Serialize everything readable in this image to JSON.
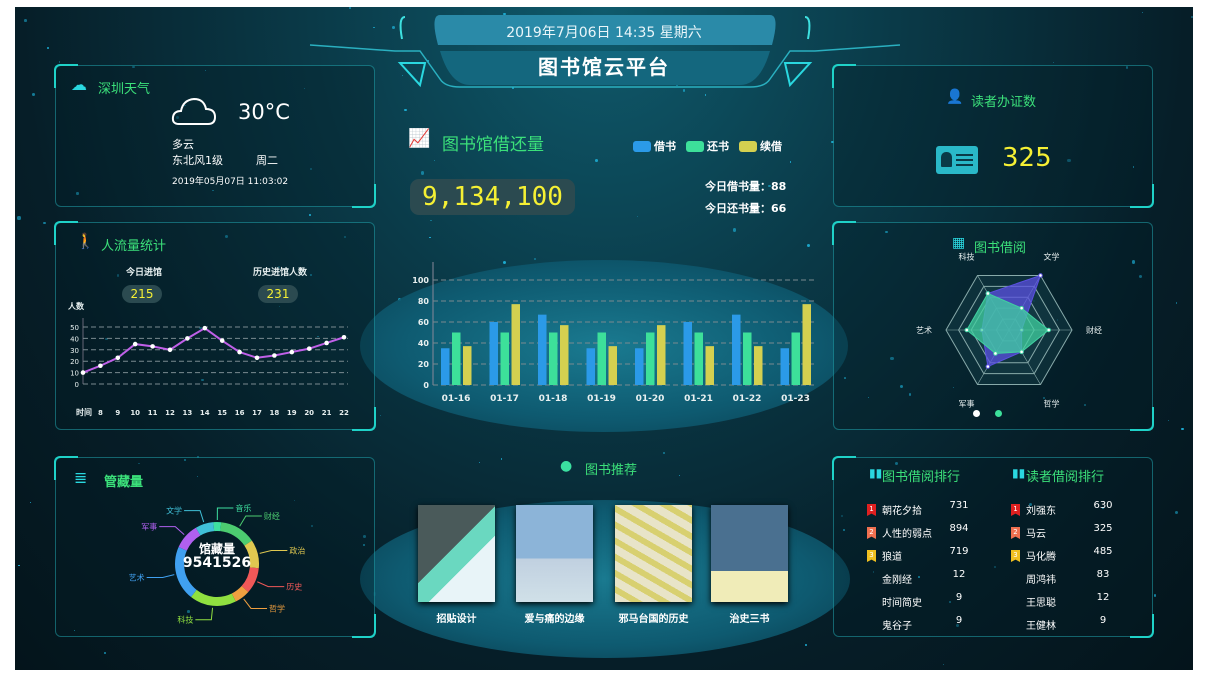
{
  "header": {
    "datetime": "2019年7月06日  14:35  星期六",
    "title": "图书馆云平台"
  },
  "weather": {
    "title": "深圳天气",
    "icon": "cloud-icon",
    "temperature": "30°C",
    "condition": "多云",
    "wind": "东北风1级",
    "weekday": "周二",
    "datetime": "2019年05月07日  11:03:02"
  },
  "traffic": {
    "title": "人流量统计",
    "today_label": "今日进馆",
    "today_value": "215",
    "history_label": "历史进馆人数",
    "history_value": "231",
    "chart_data": {
      "type": "line",
      "ylabel": "人数",
      "xlabel": "时间",
      "categories": [
        "",
        "8",
        "9",
        "10",
        "11",
        "12",
        "13",
        "14",
        "15",
        "16",
        "17",
        "18",
        "19",
        "20",
        "21",
        "22"
      ],
      "values": [
        10,
        16,
        23,
        35,
        33,
        30,
        40,
        49,
        38,
        28,
        23,
        25,
        28,
        31,
        36,
        41
      ],
      "yticks": [
        0,
        10,
        20,
        30,
        40,
        50
      ],
      "ylim": [
        0,
        55
      ],
      "color": "#c060e8",
      "grid": "dashed"
    }
  },
  "collection": {
    "title": "管藏量",
    "center_label": "馆藏量",
    "center_value": "9541526",
    "chart_data": {
      "type": "pie",
      "donut": true,
      "categories": [
        "音乐",
        "财经",
        "政治",
        "历史",
        "哲学",
        "科技",
        "艺术",
        "军事",
        "文学"
      ],
      "values": [
        3,
        14,
        11,
        10,
        6,
        18,
        21,
        10,
        7
      ],
      "colors": [
        "#3ee0a0",
        "#4ccc70",
        "#e0c850",
        "#f05858",
        "#f0a040",
        "#90e040",
        "#40a0f0",
        "#b060f0",
        "#40c0d8"
      ]
    }
  },
  "loans": {
    "title": "图书馆借还量",
    "total": "9,134,100",
    "today_borrow": "今日借书量：88",
    "today_return": "今日还书量：66",
    "chart_data": {
      "type": "bar",
      "categories": [
        "01-16",
        "01-17",
        "01-18",
        "01-19",
        "01-20",
        "01-21",
        "01-22",
        "01-23"
      ],
      "series": [
        {
          "name": "借书",
          "color": "#2b9ae8",
          "values": [
            35,
            60,
            67,
            35,
            35,
            60,
            67,
            35
          ]
        },
        {
          "name": "还书",
          "color": "#3de09a",
          "values": [
            50,
            50,
            50,
            50,
            50,
            50,
            50,
            50
          ]
        },
        {
          "name": "续借",
          "color": "#d4d050",
          "values": [
            37,
            77,
            57,
            37,
            57,
            37,
            37,
            77
          ]
        }
      ],
      "yticks": [
        0,
        20,
        40,
        60,
        80,
        100
      ],
      "ylim": [
        0,
        115
      ],
      "grid": "dashed",
      "legend": "top-right"
    }
  },
  "recommend": {
    "title": "图书推荐",
    "books": [
      {
        "title": "招贴设计"
      },
      {
        "title": "爱与痛的边缘"
      },
      {
        "title": "邪马台国的历史"
      },
      {
        "title": "治史三书"
      }
    ]
  },
  "reader_cards": {
    "title": "读者办证数",
    "value": "325"
  },
  "borrow_radar": {
    "title": "图书借阅",
    "chart_data": {
      "type": "radar",
      "axes": [
        "科技",
        "文学",
        "财经",
        "哲学",
        "军事",
        "艺术"
      ],
      "max": 100,
      "series": [
        {
          "color": "#5a50e0",
          "values": [
            67,
            100,
            20,
            40,
            67,
            43
          ]
        },
        {
          "color": "#40d0a0",
          "values": [
            67,
            40,
            63,
            40,
            43,
            67
          ]
        }
      ]
    },
    "pager": {
      "count": 2,
      "active": 0
    }
  },
  "rankings": {
    "books_title": "图书借阅排行",
    "readers_title": "读者借阅排行",
    "books": [
      {
        "name": "朝花夕拾",
        "value": "731",
        "rank": "1"
      },
      {
        "name": "人性的弱点",
        "value": "894",
        "rank": "2"
      },
      {
        "name": "狼道",
        "value": "719",
        "rank": "3"
      },
      {
        "name": "金刚经",
        "value": "12"
      },
      {
        "name": "时间简史",
        "value": "9"
      },
      {
        "name": "鬼谷子",
        "value": "9"
      }
    ],
    "readers": [
      {
        "name": "刘强东",
        "value": "630",
        "rank": "1"
      },
      {
        "name": "马云",
        "value": "325",
        "rank": "2"
      },
      {
        "name": "马化腾",
        "value": "485",
        "rank": "3"
      },
      {
        "name": "周鸿祎",
        "value": "83"
      },
      {
        "name": "王思聪",
        "value": "12"
      },
      {
        "name": "王健林",
        "value": "9"
      }
    ],
    "rank_colors": [
      "#e02020",
      "#f07050",
      "#f0c020"
    ]
  }
}
